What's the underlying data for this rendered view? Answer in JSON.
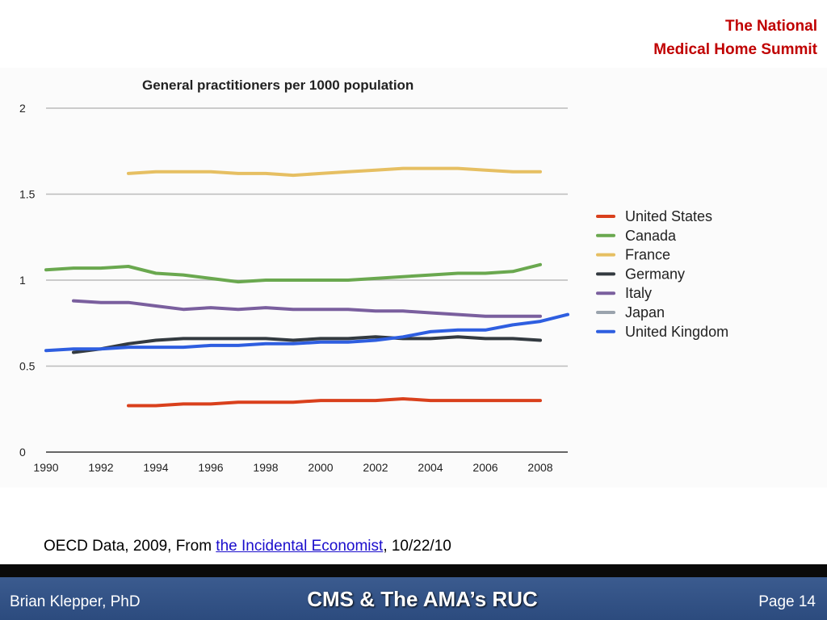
{
  "header": {
    "line1": "The National",
    "line2": "Medical Home Summit"
  },
  "source": {
    "prefix": "OECD Data, 2009, From ",
    "link_text": "the Incidental Economist",
    "suffix": ", 10/22/10"
  },
  "footer": {
    "author": "Brian Klepper, PhD",
    "title": "CMS & The AMA’s RUC",
    "page": "Page 14"
  },
  "colors": {
    "header_text": "#c00000",
    "footer_bg": "#2c4b7e",
    "link": "#1a0dcc"
  },
  "chart_data": {
    "type": "line",
    "title": "General practitioners per 1000 population",
    "xlabel": "",
    "ylabel": "",
    "xlim": [
      1990,
      2009
    ],
    "ylim": [
      0,
      2
    ],
    "xticks": [
      1990,
      1992,
      1994,
      1996,
      1998,
      2000,
      2002,
      2004,
      2006,
      2008
    ],
    "yticks": [
      {
        "value": 0,
        "label": "0"
      },
      {
        "value": 0.5,
        "label": "0.5"
      },
      {
        "value": 1,
        "label": "1"
      },
      {
        "value": 1.5,
        "label": "1.5"
      },
      {
        "value": 2,
        "label": "2"
      }
    ],
    "grid": true,
    "legend_position": "right",
    "series": [
      {
        "name": "United States",
        "color": "#d9401c",
        "x": [
          1993,
          1994,
          1995,
          1996,
          1997,
          1998,
          1999,
          2000,
          2001,
          2002,
          2003,
          2004,
          2005,
          2006,
          2007,
          2008
        ],
        "y": [
          0.27,
          0.27,
          0.28,
          0.28,
          0.29,
          0.29,
          0.29,
          0.3,
          0.3,
          0.3,
          0.31,
          0.3,
          0.3,
          0.3,
          0.3,
          0.3
        ]
      },
      {
        "name": "Canada",
        "color": "#6aa84f",
        "x": [
          1990,
          1991,
          1992,
          1993,
          1994,
          1995,
          1996,
          1997,
          1998,
          1999,
          2000,
          2001,
          2002,
          2003,
          2004,
          2005,
          2006,
          2007,
          2008
        ],
        "y": [
          1.06,
          1.07,
          1.07,
          1.08,
          1.04,
          1.03,
          1.01,
          0.99,
          1.0,
          1.0,
          1.0,
          1.0,
          1.01,
          1.02,
          1.03,
          1.04,
          1.04,
          1.05,
          1.09
        ]
      },
      {
        "name": "France",
        "color": "#e6bf62",
        "x": [
          1993,
          1994,
          1995,
          1996,
          1997,
          1998,
          1999,
          2000,
          2001,
          2002,
          2003,
          2004,
          2005,
          2006,
          2007,
          2008
        ],
        "y": [
          1.62,
          1.63,
          1.63,
          1.63,
          1.62,
          1.62,
          1.61,
          1.62,
          1.63,
          1.64,
          1.65,
          1.65,
          1.65,
          1.64,
          1.63,
          1.63
        ]
      },
      {
        "name": "Germany",
        "color": "#333a40",
        "x": [
          1991,
          1992,
          1993,
          1994,
          1995,
          1996,
          1997,
          1998,
          1999,
          2000,
          2001,
          2002,
          2003,
          2004,
          2005,
          2006,
          2007,
          2008
        ],
        "y": [
          0.58,
          0.6,
          0.63,
          0.65,
          0.66,
          0.66,
          0.66,
          0.66,
          0.65,
          0.66,
          0.66,
          0.67,
          0.66,
          0.66,
          0.67,
          0.66,
          0.66,
          0.65
        ]
      },
      {
        "name": "Italy",
        "color": "#7a5f9e",
        "x": [
          1991,
          1992,
          1993,
          1994,
          1995,
          1996,
          1997,
          1998,
          1999,
          2000,
          2001,
          2002,
          2003,
          2004,
          2005,
          2006,
          2007,
          2008
        ],
        "y": [
          0.88,
          0.87,
          0.87,
          0.85,
          0.83,
          0.84,
          0.83,
          0.84,
          0.83,
          0.83,
          0.83,
          0.82,
          0.82,
          0.81,
          0.8,
          0.79,
          0.79,
          0.79
        ]
      },
      {
        "name": "Japan",
        "color": "#9aa3ad",
        "x": [],
        "y": []
      },
      {
        "name": "United Kingdom",
        "color": "#2e5ee0",
        "x": [
          1990,
          1991,
          1992,
          1993,
          1994,
          1995,
          1996,
          1997,
          1998,
          1999,
          2000,
          2001,
          2002,
          2003,
          2004,
          2005,
          2006,
          2007,
          2008,
          2009
        ],
        "y": [
          0.59,
          0.6,
          0.6,
          0.61,
          0.61,
          0.61,
          0.62,
          0.62,
          0.63,
          0.63,
          0.64,
          0.64,
          0.65,
          0.67,
          0.7,
          0.71,
          0.71,
          0.74,
          0.76,
          0.8
        ]
      }
    ]
  }
}
